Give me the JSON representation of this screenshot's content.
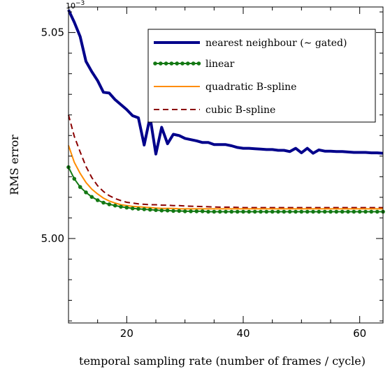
{
  "chart_data": {
    "type": "line",
    "title": "",
    "xlabel": "temporal sampling rate (number of frames / cycle)",
    "ylabel": "RMS error",
    "y_scale_multiplier": "10^-3",
    "xlim": [
      10,
      64
    ],
    "ylim": [
      4.9795,
      5.0562
    ],
    "x_ticks": [
      20,
      40,
      60
    ],
    "y_ticks": [
      5.0,
      5.05
    ],
    "y_tick_labels": [
      "5.00",
      "5.05"
    ],
    "grid": false,
    "legend_position": "top-right",
    "series": [
      {
        "name": "nearest neighbour (∼ gated)",
        "color": "#00008b",
        "style": "solid-thick",
        "x": [
          10,
          11,
          12,
          13,
          14,
          15,
          16,
          17,
          18,
          19,
          20,
          21,
          22,
          23,
          24,
          25,
          26,
          27,
          28,
          29,
          30,
          31,
          32,
          33,
          34,
          35,
          36,
          37,
          38,
          39,
          40,
          41,
          42,
          43,
          44,
          45,
          46,
          47,
          48,
          49,
          50,
          51,
          52,
          53,
          54,
          55,
          56,
          57,
          58,
          59,
          60,
          61,
          62,
          63,
          64
        ],
        "y": [
          5.0555,
          5.0525,
          5.049,
          5.043,
          5.0405,
          5.0383,
          5.0355,
          5.0353,
          5.0337,
          5.0325,
          5.0313,
          5.0298,
          5.0293,
          5.0227,
          5.0295,
          5.0205,
          5.027,
          5.023,
          5.0253,
          5.025,
          5.0243,
          5.024,
          5.0237,
          5.0233,
          5.0233,
          5.0228,
          5.0228,
          5.0228,
          5.0225,
          5.0221,
          5.0219,
          5.0219,
          5.0218,
          5.0217,
          5.0216,
          5.0216,
          5.0214,
          5.0214,
          5.0211,
          5.0219,
          5.0208,
          5.0219,
          5.0207,
          5.0215,
          5.0212,
          5.0212,
          5.0211,
          5.0211,
          5.021,
          5.0209,
          5.0209,
          5.0209,
          5.0208,
          5.0208,
          5.0207
        ]
      },
      {
        "name": "linear",
        "color": "#137813",
        "style": "dotted",
        "x": [
          10,
          11,
          12,
          13,
          14,
          15,
          16,
          17,
          18,
          19,
          20,
          21,
          22,
          23,
          24,
          25,
          26,
          27,
          28,
          29,
          30,
          31,
          32,
          33,
          34,
          35,
          36,
          37,
          38,
          39,
          40,
          41,
          42,
          43,
          44,
          45,
          46,
          47,
          48,
          49,
          50,
          51,
          52,
          53,
          54,
          55,
          56,
          57,
          58,
          59,
          60,
          61,
          62,
          63,
          64
        ],
        "y": [
          5.0173,
          5.0145,
          5.0125,
          5.0112,
          5.0101,
          5.0093,
          5.0087,
          5.0083,
          5.008,
          5.0077,
          5.0075,
          5.0073,
          5.0072,
          5.0071,
          5.007,
          5.0069,
          5.0068,
          5.0068,
          5.0067,
          5.0067,
          5.0066,
          5.0066,
          5.0066,
          5.0066,
          5.0065,
          5.0065,
          5.0065,
          5.0065,
          5.0065,
          5.0065,
          5.0065,
          5.0065,
          5.0065,
          5.0065,
          5.0065,
          5.0065,
          5.0065,
          5.0065,
          5.0065,
          5.0065,
          5.0065,
          5.0065,
          5.0065,
          5.0065,
          5.0065,
          5.0065,
          5.0065,
          5.0065,
          5.0065,
          5.0065,
          5.0065,
          5.0065,
          5.0065,
          5.0065,
          5.0065
        ]
      },
      {
        "name": "quadratic B-spline",
        "color": "#ff8c00",
        "style": "solid-thin",
        "x": [
          10,
          11,
          12,
          13,
          14,
          15,
          16,
          17,
          18,
          19,
          20,
          21,
          22,
          23,
          24,
          25,
          26,
          27,
          28,
          29,
          30,
          32,
          34,
          36,
          38,
          40,
          44,
          48,
          52,
          56,
          60,
          64
        ],
        "y": [
          5.0226,
          5.0185,
          5.0158,
          5.0136,
          5.012,
          5.0108,
          5.0098,
          5.0091,
          5.0086,
          5.0082,
          5.008,
          5.0078,
          5.0077,
          5.0076,
          5.0075,
          5.0074,
          5.0073,
          5.0073,
          5.0073,
          5.0072,
          5.0072,
          5.0072,
          5.0072,
          5.0072,
          5.0072,
          5.0072,
          5.0072,
          5.0072,
          5.0072,
          5.0072,
          5.0072,
          5.0072
        ]
      },
      {
        "name": "cubic B-spline",
        "color": "#8b0000",
        "style": "dashed",
        "x": [
          10,
          11,
          12,
          13,
          14,
          15,
          16,
          17,
          18,
          19,
          20,
          21,
          22,
          23,
          24,
          25,
          26,
          27,
          28,
          29,
          30,
          32,
          34,
          36,
          38,
          40,
          44,
          48,
          52,
          56,
          60,
          64
        ],
        "y": [
          5.03,
          5.0248,
          5.021,
          5.0175,
          5.0148,
          5.0128,
          5.0114,
          5.0104,
          5.0097,
          5.0092,
          5.0088,
          5.0086,
          5.0084,
          5.0083,
          5.0082,
          5.0082,
          5.0081,
          5.0081,
          5.008,
          5.008,
          5.0079,
          5.0078,
          5.0077,
          5.0076,
          5.0076,
          5.0075,
          5.0075,
          5.0075,
          5.0075,
          5.0075,
          5.0075,
          5.0075
        ]
      }
    ]
  }
}
